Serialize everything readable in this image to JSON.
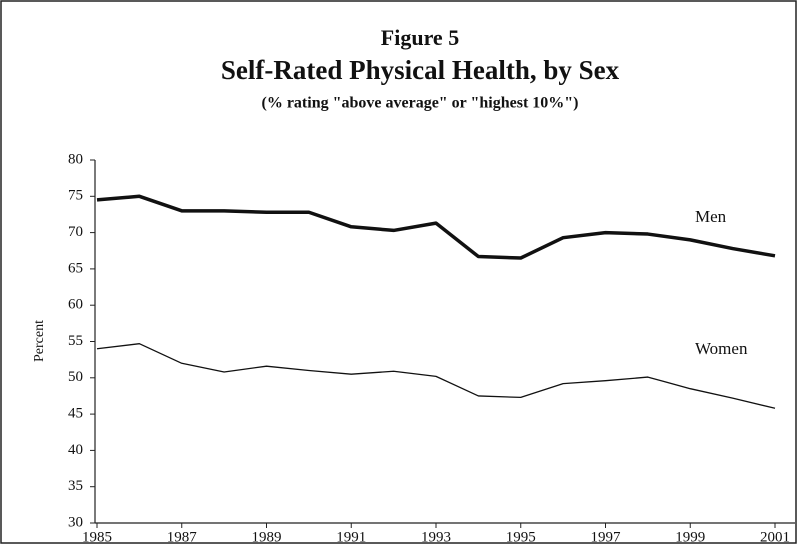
{
  "chart_data": {
    "type": "line",
    "title": "Figure 5",
    "subtitle": "Self-Rated Physical Health, by Sex",
    "note": "(% rating \"above average\" or \"highest 10%\")",
    "y_label": "Percent",
    "x": [
      1985,
      1986,
      1987,
      1988,
      1989,
      1990,
      1991,
      1992,
      1993,
      1994,
      1995,
      1996,
      1997,
      1998,
      1999,
      2000,
      2001
    ],
    "series": [
      {
        "name": "Men",
        "color": "#111111",
        "values": [
          74.5,
          75,
          73,
          73,
          72.8,
          72.8,
          70.8,
          70.3,
          71.3,
          66.7,
          66.5,
          69.3,
          70,
          69.8,
          69,
          67.8,
          66.8
        ]
      },
      {
        "name": "Women",
        "color": "#111111",
        "values": [
          54,
          54.7,
          52,
          50.8,
          51.6,
          51,
          50.5,
          50.9,
          50.2,
          47.5,
          47.3,
          49.2,
          49.6,
          50.1,
          48.5,
          47.2,
          45.8
        ]
      }
    ],
    "xlim": [
      1985,
      2001
    ],
    "xticks": [
      1985,
      1987,
      1989,
      1991,
      1993,
      1995,
      1997,
      1999,
      2001
    ],
    "ylim": [
      30,
      80
    ],
    "yticks": [
      30,
      35,
      40,
      45,
      50,
      55,
      60,
      65,
      70,
      75,
      80
    ],
    "grid": false
  }
}
